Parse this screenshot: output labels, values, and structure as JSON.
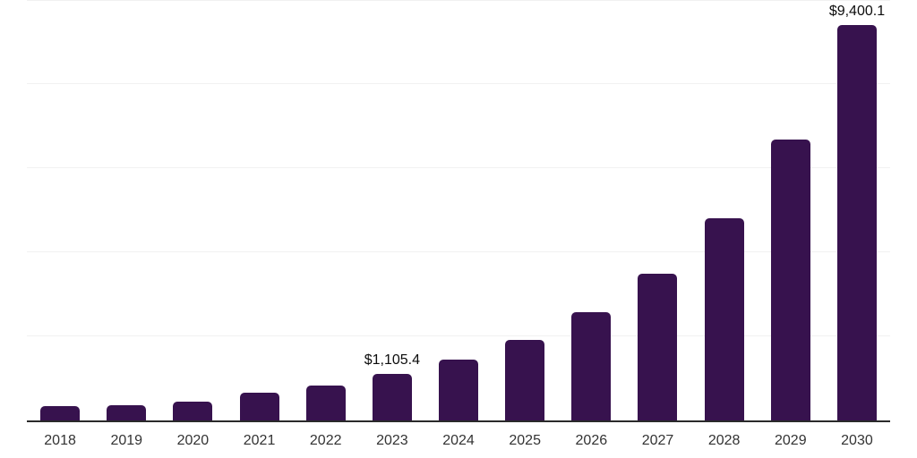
{
  "chart_data": {
    "type": "bar",
    "title": "",
    "categories": [
      "2018",
      "2019",
      "2020",
      "2021",
      "2022",
      "2023",
      "2024",
      "2025",
      "2026",
      "2027",
      "2028",
      "2029",
      "2030"
    ],
    "values": [
      335,
      355,
      445,
      655,
      840,
      1105.4,
      1450,
      1910,
      2570,
      3490,
      4815,
      6690,
      9400.1
    ],
    "data_labels": [
      null,
      null,
      null,
      null,
      null,
      "$1,105.4",
      null,
      null,
      null,
      null,
      null,
      null,
      "$9,400.1"
    ],
    "xlabel": "",
    "ylabel": "",
    "ylim": [
      0,
      10000
    ],
    "gridline_values": [
      2000,
      4000,
      6000,
      8000,
      10000
    ],
    "grid": "horizontal",
    "legend_position": "none",
    "y_tick_labels_visible": false
  },
  "colors": {
    "bar": "#37124E",
    "axis_line": "#2a2a2a",
    "gridline": "#f1f1f1",
    "x_tick_label": "#333333",
    "data_label": "#0c0c0c",
    "background": "#ffffff"
  }
}
